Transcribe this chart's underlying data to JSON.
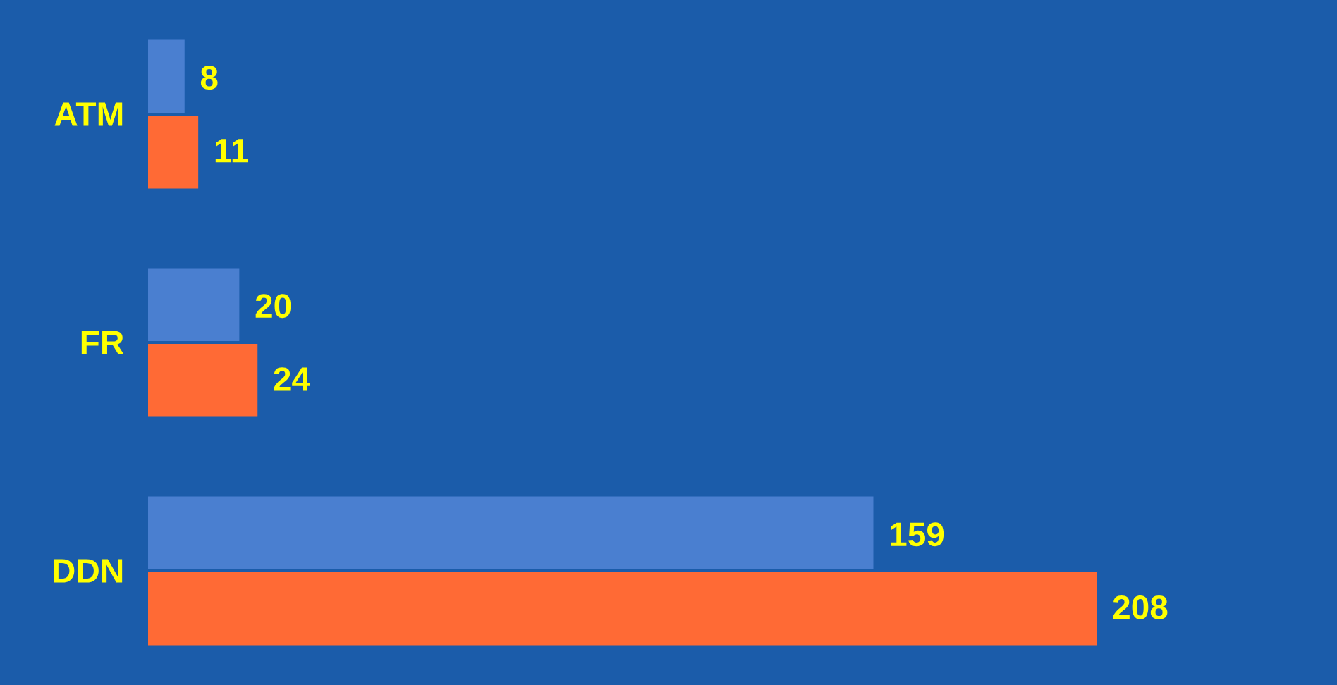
{
  "chart_data": {
    "type": "bar",
    "orientation": "horizontal",
    "categories": [
      "ATM",
      "FR",
      "DDN"
    ],
    "series": [
      {
        "color": "#4a7fd0",
        "values": [
          8,
          20,
          159
        ]
      },
      {
        "color": "#ff6a35",
        "values": [
          11,
          24,
          208
        ]
      }
    ],
    "data_labels": true
  }
}
